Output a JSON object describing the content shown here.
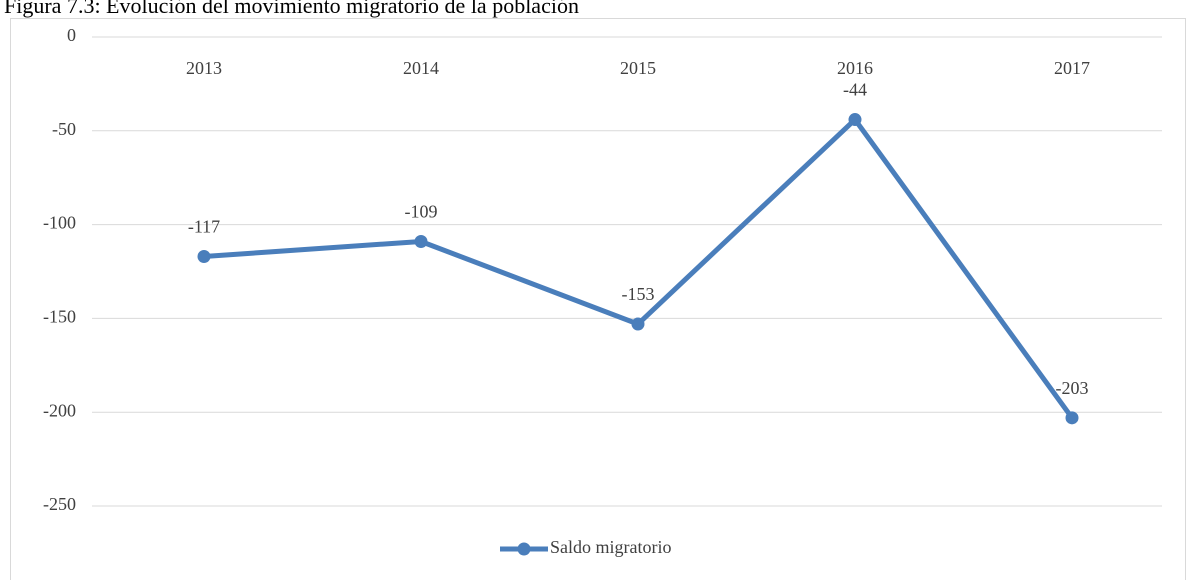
{
  "chart_data": {
    "type": "line",
    "title": "Figura 7.3: Evolución del movimiento migratorio de la población",
    "categories": [
      "2013",
      "2014",
      "2015",
      "2016",
      "2017"
    ],
    "series": [
      {
        "name": "Saldo migratorio",
        "color": "#4a7ebb",
        "values": [
          -117,
          -109,
          -153,
          -44,
          -203
        ]
      }
    ],
    "ylim": [
      -250,
      0
    ],
    "yticks": [
      0,
      -50,
      -100,
      -150,
      -200,
      -250
    ],
    "grid": true,
    "legend": "bottom",
    "data_labels": true
  }
}
